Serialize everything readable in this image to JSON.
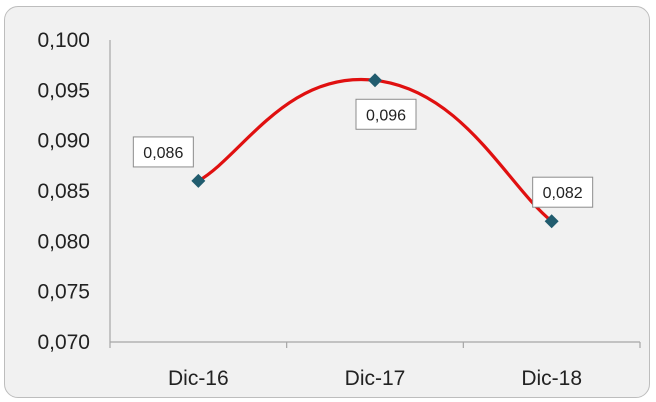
{
  "chart_data": {
    "type": "line",
    "title": "",
    "xlabel": "",
    "ylabel": "",
    "categories": [
      "Dic-16",
      "Dic-17",
      "Dic-18"
    ],
    "series": [
      {
        "values": [
          0.086,
          0.096,
          0.082
        ]
      }
    ],
    "data_labels": [
      "0,086",
      "0,096",
      "0,082"
    ],
    "ylim": [
      0.07,
      0.1
    ],
    "y_ticks": [
      0.07,
      0.075,
      0.08,
      0.085,
      0.09,
      0.095,
      0.1
    ],
    "y_tick_labels": [
      "0,070",
      "0,075",
      "0,080",
      "0,085",
      "0,090",
      "0,095",
      "0,100"
    ],
    "grid": false,
    "legend": "none",
    "smooth": true,
    "line_color": "#e01010",
    "marker_color": "#215c6e",
    "marker": "diamond",
    "background": "#f1f1f1"
  }
}
